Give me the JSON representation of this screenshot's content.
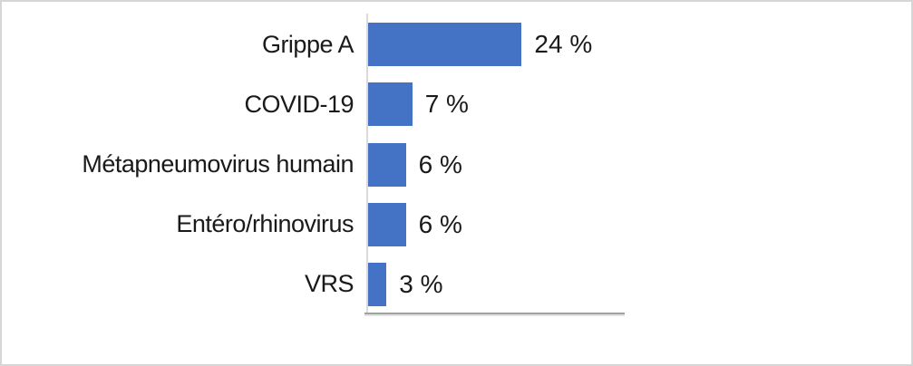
{
  "chart_data": {
    "type": "bar",
    "orientation": "horizontal",
    "title": "",
    "xlabel": "",
    "ylabel": "",
    "categories": [
      "Grippe A",
      "COVID-19",
      "Métapneumovirus humain",
      "Entéro/rhinovirus",
      "VRS"
    ],
    "values": [
      24,
      7,
      6,
      6,
      3
    ],
    "data_labels": [
      "24 %",
      "7 %",
      "6 %",
      "6 %",
      "3 %"
    ],
    "xlim": [
      0,
      40
    ],
    "grid": false,
    "legend": false,
    "bar_color": "#4472C4",
    "axis_line_color": "#A1A1A1",
    "gridline_color": "#DADADA",
    "text_color": "#1A1A1A"
  }
}
